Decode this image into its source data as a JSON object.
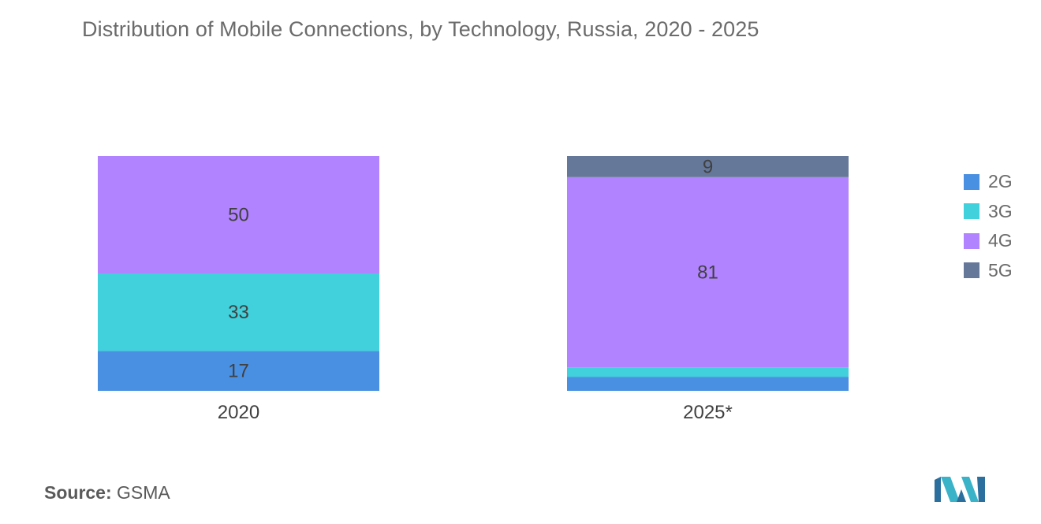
{
  "title": "Distribution of Mobile Connections, by Technology, Russia, 2020 - 2025",
  "source": {
    "label": "Source:",
    "value": "GSMA"
  },
  "colors": {
    "2G": "#4a90e2",
    "3G": "#40d1dc",
    "4G": "#b283ff",
    "5G": "#66789a"
  },
  "chart_data": {
    "type": "bar",
    "stacked": true,
    "percent": true,
    "title": "Distribution of Mobile Connections, by Technology, Russia, 2020 - 2025",
    "categories": [
      "2020",
      "2025*"
    ],
    "series": [
      {
        "name": "2G",
        "values": [
          17,
          6
        ],
        "labels": [
          "17",
          ""
        ]
      },
      {
        "name": "3G",
        "values": [
          33,
          4
        ],
        "labels": [
          "33",
          ""
        ]
      },
      {
        "name": "4G",
        "values": [
          50,
          81
        ],
        "labels": [
          "50",
          "81"
        ]
      },
      {
        "name": "5G",
        "values": [
          0,
          9
        ],
        "labels": [
          "",
          "9"
        ]
      }
    ],
    "ylim": [
      0,
      100
    ],
    "grid": false,
    "legend": "right"
  }
}
